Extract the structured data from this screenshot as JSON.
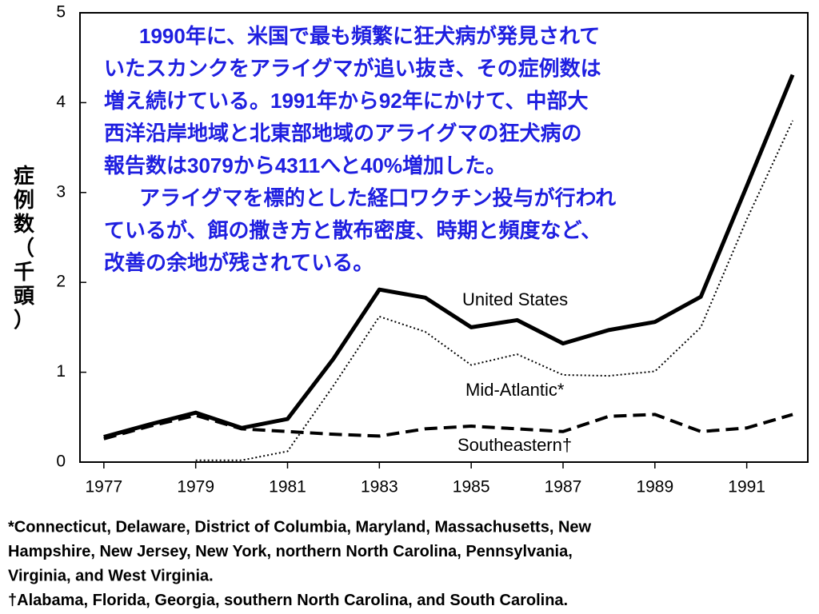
{
  "chart_data": {
    "type": "line",
    "y_label": "症例数（千頭）",
    "x": [
      1977,
      1978,
      1979,
      1980,
      1981,
      1982,
      1983,
      1984,
      1985,
      1986,
      1987,
      1988,
      1989,
      1990,
      1991,
      1992
    ],
    "series": [
      {
        "name": "United States",
        "color": "#000000",
        "style": "solid",
        "values": [
          0.28,
          0.42,
          0.55,
          0.38,
          0.48,
          1.15,
          1.92,
          1.83,
          1.5,
          1.58,
          1.32,
          1.47,
          1.56,
          1.84,
          3.07,
          4.31
        ]
      },
      {
        "name": "Mid-Atlantic*",
        "color": "#000000",
        "style": "dotted",
        "values": [
          null,
          null,
          0.02,
          0.02,
          0.12,
          0.85,
          1.62,
          1.45,
          1.08,
          1.2,
          0.97,
          0.96,
          1.01,
          1.5,
          2.7,
          3.8
        ]
      },
      {
        "name": "Southeastern†",
        "color": "#000000",
        "style": "dashed",
        "values": [
          0.26,
          0.4,
          0.52,
          0.37,
          0.34,
          0.31,
          0.29,
          0.37,
          0.4,
          0.37,
          0.34,
          0.51,
          0.53,
          0.34,
          0.38,
          0.53
        ]
      }
    ],
    "xlim": [
      1976.48,
      1992.33
    ],
    "xticks": [
      1977,
      1979,
      1981,
      1983,
      1985,
      1987,
      1989,
      1991
    ],
    "ylim": [
      0,
      5
    ],
    "yticks": [
      0,
      1,
      2,
      3,
      4,
      5
    ],
    "annotation": [
      "1990年に、米国で最も頻繁に狂犬病が発見されて",
      "いたスカンクをアライグマが追い抜き、その症例数は",
      "増え続けている。1991年から92年にかけて、中部大",
      "西洋沿岸地域と北東部地域のアライグマの狂犬病の",
      "報告数は3079から4311へと40%増加した。",
      "アライグマを標的とした経口ワクチン投与が行われ",
      "ているが、餌の撒き方と散布密度、時期と頻度など、",
      "改善の余地が残されている。"
    ],
    "annotation_color": "#1f1fe0",
    "footnotes": [
      "*Connecticut, Delaware, District of Columbia, Maryland, Massachusetts, New",
      "Hampshire, New Jersey, New York, northern North Carolina, Pennsylvania,",
      "Virginia, and West Virginia.",
      "†Alabama, Florida, Georgia, southern North Carolina, and South Carolina."
    ]
  }
}
